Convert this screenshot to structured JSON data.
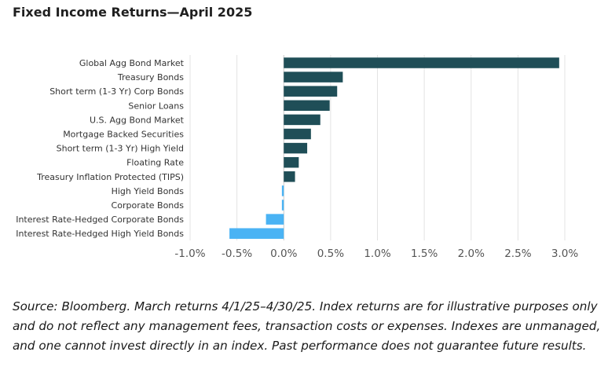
{
  "colors": {
    "positive": "#1f4e57",
    "negative": "#4ab3f4",
    "grid": "#e3e3e3",
    "zero_line": "#c9c9c9",
    "label": "#333333",
    "tick": "#555555"
  },
  "chart_data": {
    "type": "bar",
    "orientation": "horizontal",
    "title": "Fixed Income Returns—April 2025",
    "xlabel": "",
    "ylabel": "",
    "xlim": [
      -1.0,
      3.0
    ],
    "x_ticks": [
      -1.0,
      -0.5,
      0.0,
      0.5,
      1.0,
      1.5,
      2.0,
      2.5,
      3.0
    ],
    "x_tick_labels": [
      "-1.0%",
      "-0.5%",
      "0.0%",
      "0.5%",
      "1.0%",
      "1.5%",
      "2.0%",
      "2.5%",
      "3.0%"
    ],
    "grid": "vertical",
    "legend": "none",
    "unit": "%",
    "categories": [
      "Global Agg Bond Market",
      "Treasury Bonds",
      "Short term (1-3 Yr) Corp Bonds",
      "Senior Loans",
      "U.S. Agg Bond Market",
      "Mortgage Backed Securities",
      "Short term (1-3 Yr) High Yield",
      "Floating Rate",
      "Treasury Inflation Protected (TIPS)",
      "High Yield Bonds",
      "Corporate Bonds",
      "Interest Rate-Hedged Corporate Bonds",
      "Interest Rate-Hedged High Yield Bonds"
    ],
    "values": [
      2.94,
      0.63,
      0.57,
      0.49,
      0.39,
      0.29,
      0.25,
      0.16,
      0.12,
      -0.02,
      -0.02,
      -0.19,
      -0.58
    ]
  },
  "source_note": "Source: Bloomberg. March returns 4/1/25–4/30/25. Index returns are for illustrative purposes only and do not reflect any management fees, transaction costs or expenses. Indexes are unmanaged, and one cannot invest directly in an index. Past performance does not guarantee future results."
}
